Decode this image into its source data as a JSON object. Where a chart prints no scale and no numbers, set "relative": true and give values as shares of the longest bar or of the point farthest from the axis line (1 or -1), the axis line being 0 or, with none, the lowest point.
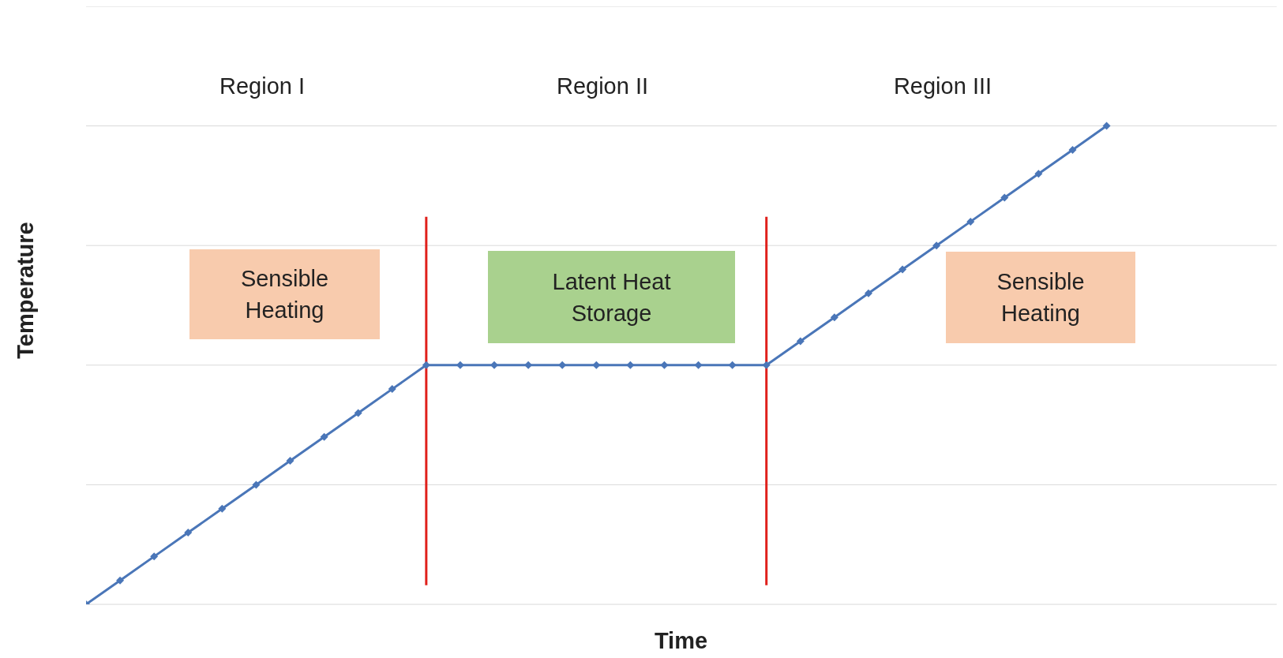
{
  "chart_data": {
    "type": "line",
    "relative": true,
    "xlabel": "Time",
    "ylabel": "Temperature",
    "categories": [
      null,
      null,
      null,
      null,
      null,
      null,
      null,
      null,
      null,
      null,
      null,
      null,
      null,
      null,
      null,
      null,
      null,
      null,
      null,
      null,
      null,
      null,
      null,
      null,
      null,
      null,
      null,
      null,
      null,
      null,
      null
    ],
    "grid": "y",
    "marker": "diamond",
    "line_style": "solid",
    "series": [
      {
        "color": "#4a76b8",
        "values": [
          0,
          0.05,
          0.1,
          0.15,
          0.2,
          0.25,
          0.3,
          0.35,
          0.4,
          0.45,
          0.5,
          0.5,
          0.5,
          0.5,
          0.5,
          0.5,
          0.5,
          0.5,
          0.5,
          0.5,
          0.5,
          0.55,
          0.6,
          0.65,
          0.7,
          0.75,
          0.8,
          0.85,
          0.9,
          0.95,
          1
        ]
      }
    ],
    "annotations": [
      "Region I",
      "Region II",
      "Region III",
      "Sensible Heating",
      "Latent Heat Storage",
      "Sensible Heating"
    ]
  }
}
